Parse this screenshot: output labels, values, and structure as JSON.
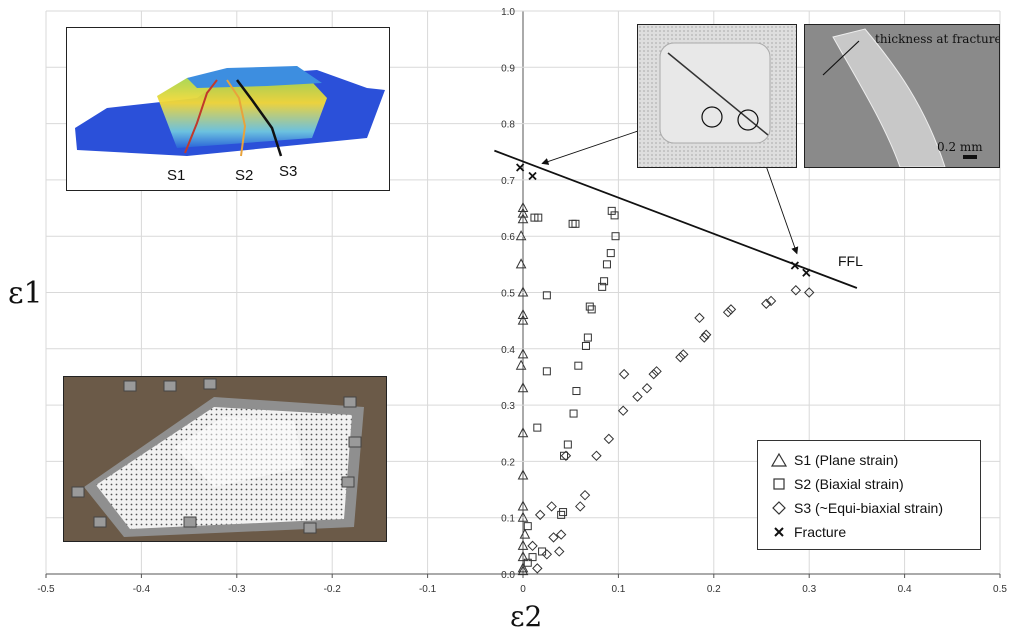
{
  "chart_data": {
    "type": "scatter",
    "xlabel": "ε2",
    "ylabel": "ε1",
    "xlim": [
      -0.5,
      0.5
    ],
    "ylim": [
      0,
      1.0
    ],
    "xticks": [
      "-0.5",
      "-0.4",
      "-0.3",
      "-0.2",
      "-0.1",
      "0",
      "0.1",
      "0.2",
      "0.3",
      "0.4",
      "0.5"
    ],
    "yticks": [
      "0.0",
      "0.1",
      "0.2",
      "0.3",
      "0.4",
      "0.5",
      "0.6",
      "0.7",
      "0.8",
      "0.9",
      "1.0"
    ],
    "grid": true,
    "legend_position": "bottom-right",
    "series": [
      {
        "name": "S1 (Plane strain)",
        "marker": "triangle",
        "points": [
          [
            0,
            0.65
          ],
          [
            0,
            0.64
          ],
          [
            0,
            0.63
          ],
          [
            -0.002,
            0.6
          ],
          [
            -0.002,
            0.55
          ],
          [
            0,
            0.5
          ],
          [
            0,
            0.46
          ],
          [
            0,
            0.45
          ],
          [
            0,
            0.39
          ],
          [
            -0.002,
            0.37
          ],
          [
            0,
            0.33
          ],
          [
            0,
            0.25
          ],
          [
            0,
            0.175
          ],
          [
            0,
            0.12
          ],
          [
            0,
            0.1
          ],
          [
            0.002,
            0.07
          ],
          [
            0,
            0.05
          ],
          [
            0,
            0.03
          ],
          [
            0,
            0.01
          ],
          [
            0,
            0.005
          ]
        ]
      },
      {
        "name": "S2 (Biaxial strain)",
        "marker": "square",
        "points": [
          [
            0.093,
            0.645
          ],
          [
            0.096,
            0.637
          ],
          [
            0.012,
            0.633
          ],
          [
            0.016,
            0.633
          ],
          [
            0.052,
            0.622
          ],
          [
            0.055,
            0.622
          ],
          [
            0.097,
            0.6
          ],
          [
            0.092,
            0.57
          ],
          [
            0.088,
            0.55
          ],
          [
            0.085,
            0.52
          ],
          [
            0.083,
            0.51
          ],
          [
            0.025,
            0.495
          ],
          [
            0.07,
            0.475
          ],
          [
            0.072,
            0.47
          ],
          [
            0.068,
            0.42
          ],
          [
            0.066,
            0.405
          ],
          [
            0.058,
            0.37
          ],
          [
            0.056,
            0.325
          ],
          [
            0.025,
            0.36
          ],
          [
            0.053,
            0.285
          ],
          [
            0.015,
            0.26
          ],
          [
            0.047,
            0.23
          ],
          [
            0.043,
            0.21
          ],
          [
            0.042,
            0.11
          ],
          [
            0.04,
            0.105
          ],
          [
            0.005,
            0.085
          ],
          [
            0.02,
            0.04
          ],
          [
            0.01,
            0.03
          ],
          [
            0.005,
            0.02
          ]
        ]
      },
      {
        "name": "S3 (~Equi-biaxial strain)",
        "marker": "diamond",
        "points": [
          [
            0.286,
            0.504
          ],
          [
            0.3,
            0.5
          ],
          [
            0.26,
            0.485
          ],
          [
            0.255,
            0.48
          ],
          [
            0.218,
            0.47
          ],
          [
            0.215,
            0.465
          ],
          [
            0.185,
            0.455
          ],
          [
            0.192,
            0.425
          ],
          [
            0.19,
            0.42
          ],
          [
            0.168,
            0.39
          ],
          [
            0.165,
            0.385
          ],
          [
            0.14,
            0.36
          ],
          [
            0.137,
            0.355
          ],
          [
            0.106,
            0.355
          ],
          [
            0.13,
            0.33
          ],
          [
            0.12,
            0.315
          ],
          [
            0.105,
            0.29
          ],
          [
            0.09,
            0.24
          ],
          [
            0.077,
            0.21
          ],
          [
            0.045,
            0.21
          ],
          [
            0.065,
            0.14
          ],
          [
            0.06,
            0.12
          ],
          [
            0.03,
            0.12
          ],
          [
            0.018,
            0.105
          ],
          [
            0.04,
            0.07
          ],
          [
            0.032,
            0.065
          ],
          [
            0.01,
            0.05
          ],
          [
            0.038,
            0.04
          ],
          [
            0.025,
            0.035
          ],
          [
            0.015,
            0.01
          ]
        ]
      },
      {
        "name": "Fracture",
        "marker": "x",
        "points": [
          [
            -0.003,
            0.722
          ],
          [
            0.01,
            0.707
          ],
          [
            0.285,
            0.548
          ],
          [
            0.297,
            0.535
          ]
        ]
      }
    ],
    "ffl_line": {
      "label": "FFL",
      "from": [
        -0.03,
        0.752
      ],
      "to": [
        0.35,
        0.508
      ]
    },
    "annotations": [
      "S1",
      "S2",
      "S3",
      "thickness at fracture",
      "0.2 mm"
    ],
    "colors": {
      "markers": "#333333",
      "grid": "#d9d9d9",
      "line": "#111111"
    }
  }
}
